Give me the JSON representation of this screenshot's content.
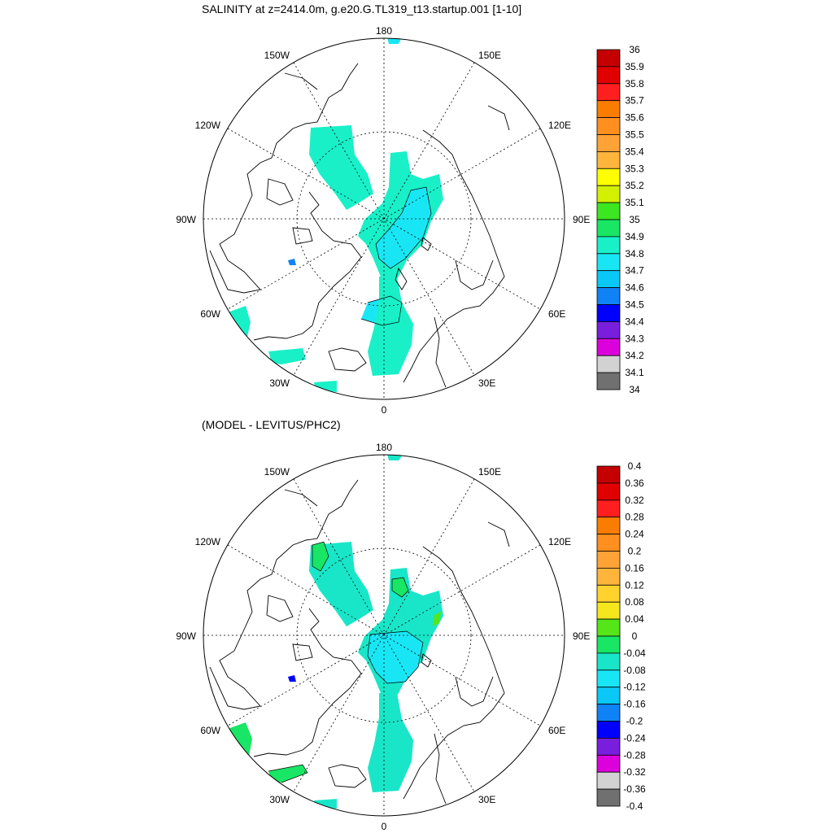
{
  "panels": [
    {
      "title": "SALINITY at z=2414.0m, g.e20.G.TL319_t13.startup.001 [1-10]",
      "lon_labels": {
        "top": "180",
        "bottom": "0",
        "left": "90W",
        "right": "90E",
        "ul1": "150W",
        "ul2": "120W",
        "ur1": "150E",
        "ur2": "120E",
        "ll1": "60W",
        "ll2": "30W",
        "lr1": "60E",
        "lr2": "30E"
      },
      "colorbar": {
        "labels": [
          "36",
          "35.9",
          "35.8",
          "35.7",
          "35.6",
          "35.5",
          "35.4",
          "35.3",
          "35.2",
          "35.1",
          "35",
          "34.9",
          "34.8",
          "34.7",
          "34.6",
          "34.5",
          "34.4",
          "34.3",
          "34.2",
          "34.1",
          "34"
        ],
        "colors": [
          "#c40000",
          "#e10000",
          "#ff1f1f",
          "#fa7d00",
          "#ff8f1f",
          "#ffa336",
          "#ffb43c",
          "#ffff00",
          "#d2f000",
          "#3ce621",
          "#19e664",
          "#19f0c8",
          "#19e6f5",
          "#0ac8f5",
          "#0f82f5",
          "#0000ff",
          "#781edc",
          "#dc00dc",
          "#d2d2d2",
          "#707070"
        ]
      }
    },
    {
      "title": "(MODEL - LEVITUS/PHC2)",
      "lon_labels": {
        "top": "180",
        "bottom": "0",
        "left": "90W",
        "right": "90E",
        "ul1": "150W",
        "ul2": "120W",
        "ur1": "150E",
        "ur2": "120E",
        "ll1": "60W",
        "ll2": "30W",
        "lr1": "60E",
        "lr2": "30E"
      },
      "colorbar": {
        "labels": [
          "0.4",
          "0.36",
          "0.32",
          "0.28",
          "0.24",
          "0.2",
          "0.16",
          "0.12",
          "0.08",
          "0.04",
          "0",
          "-0.04",
          "-0.08",
          "-0.12",
          "-0.16",
          "-0.2",
          "-0.24",
          "-0.28",
          "-0.32",
          "-0.36",
          "-0.4"
        ],
        "colors": [
          "#c40000",
          "#e10000",
          "#ff1f1f",
          "#fa7d00",
          "#ff8f1f",
          "#ffa336",
          "#ffb43c",
          "#ffd22d",
          "#f5e61e",
          "#55e619",
          "#19e664",
          "#19e6c8",
          "#19e6f5",
          "#0ac8f5",
          "#0f82f5",
          "#0000ff",
          "#781edc",
          "#dc00dc",
          "#d2d2d2",
          "#707070"
        ]
      }
    }
  ]
}
